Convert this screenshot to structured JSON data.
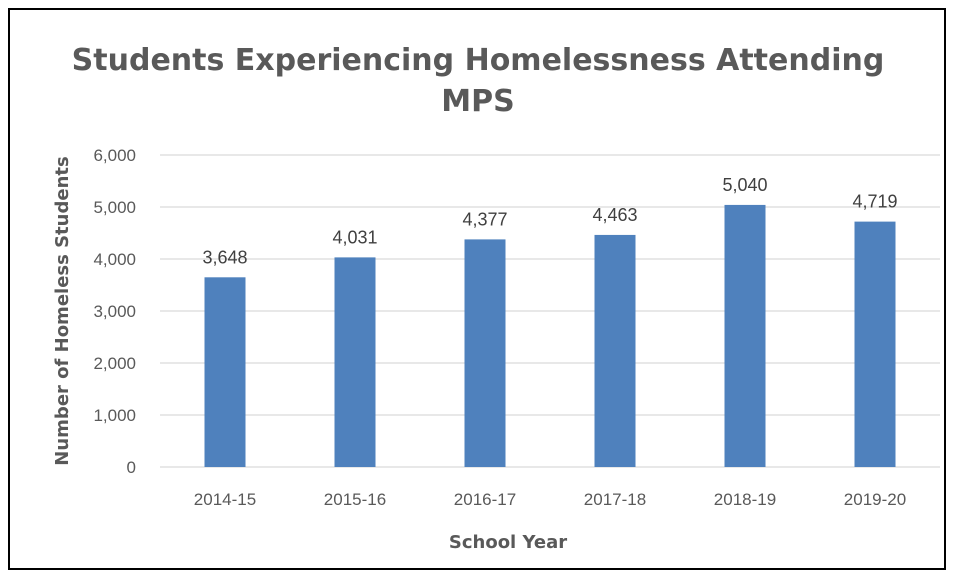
{
  "chart_data": {
    "type": "bar",
    "title_lines": [
      "Students Experiencing Homelessness Attending",
      "MPS"
    ],
    "xlabel": "School Year",
    "ylabel": "Number of Homeless Students",
    "categories": [
      "2014-15",
      "2015-16",
      "2016-17",
      "2017-18",
      "2018-19",
      "2019-20"
    ],
    "values": [
      3648,
      4031,
      4377,
      4463,
      5040,
      4719
    ],
    "value_labels": [
      "3,648",
      "4,031",
      "4,377",
      "4,463",
      "5,040",
      "4,719"
    ],
    "ylim": [
      0,
      6000
    ],
    "yticks": [
      0,
      1000,
      2000,
      3000,
      4000,
      5000,
      6000
    ],
    "ytick_labels": [
      "0",
      "1,000",
      "2,000",
      "3,000",
      "4,000",
      "5,000",
      "6,000"
    ],
    "grid": true,
    "legend": "none",
    "bar_color": "#4f81bd",
    "gridline_color": "#d9d9d9"
  }
}
